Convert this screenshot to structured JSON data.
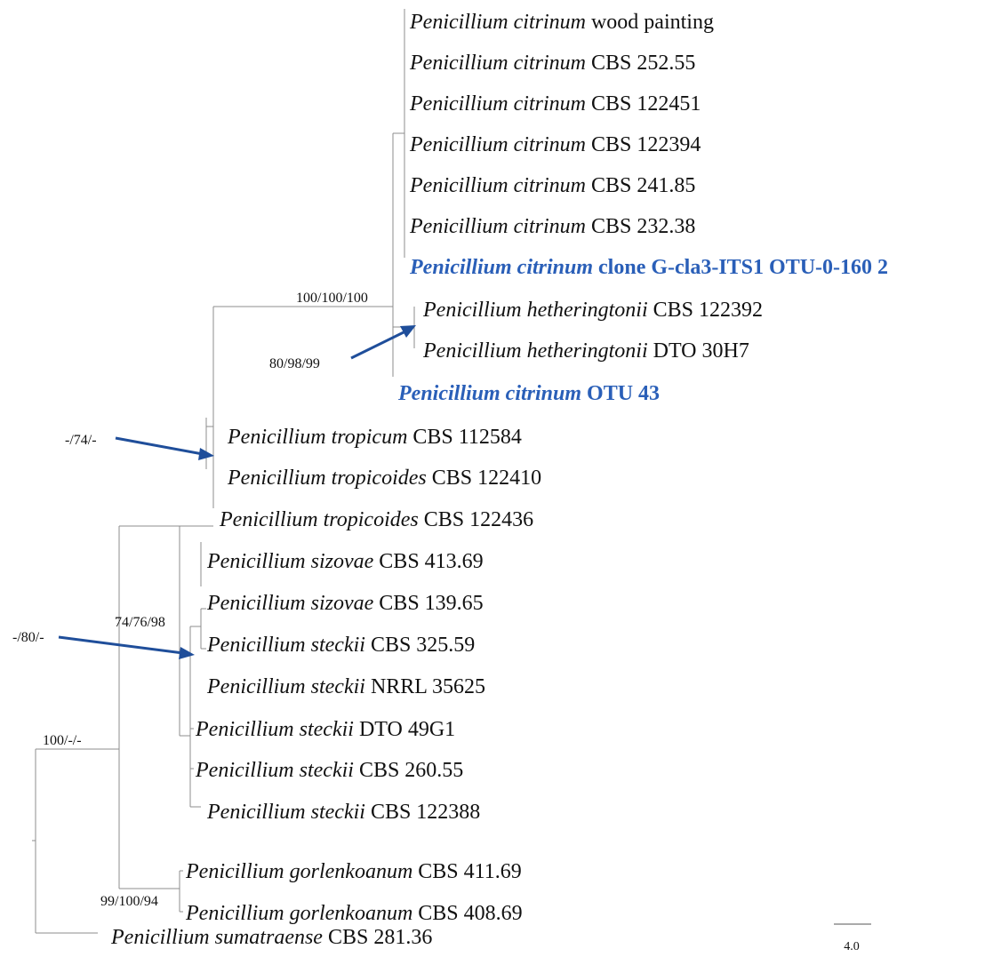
{
  "taxa": [
    {
      "species": "Penicillium citrinum",
      "strain": "wood painting",
      "highlight": false
    },
    {
      "species": "Penicillium citrinum",
      "strain": "CBS 252.55",
      "highlight": false
    },
    {
      "species": "Penicillium citrinum",
      "strain": "CBS 122451",
      "highlight": false
    },
    {
      "species": "Penicillium citrinum",
      "strain": "CBS 122394",
      "highlight": false
    },
    {
      "species": "Penicillium citrinum",
      "strain": "CBS 241.85",
      "highlight": false
    },
    {
      "species": "Penicillium citrinum",
      "strain": "CBS 232.38",
      "highlight": false
    },
    {
      "species": "Penicillium citrinum",
      "strain": "clone G-cla3-ITS1 OTU-0-160 2",
      "highlight": true
    },
    {
      "species": "Penicillium hetheringtonii",
      "strain": "CBS 122392",
      "highlight": false
    },
    {
      "species": "Penicillium hetheringtonii",
      "strain": "DTO 30H7",
      "highlight": false
    },
    {
      "species": "Penicillium citrinum",
      "strain": "OTU 43",
      "highlight": true
    },
    {
      "species": "Penicillium tropicum",
      "strain": "CBS 112584",
      "highlight": false
    },
    {
      "species": "Penicillium tropicoides",
      "strain": "CBS 122410",
      "highlight": false
    },
    {
      "species": "Penicillium tropicoides",
      "strain": "CBS 122436",
      "highlight": false
    },
    {
      "species": "Penicillium sizovae",
      "strain": "CBS 413.69",
      "highlight": false
    },
    {
      "species": "Penicillium sizovae",
      "strain": "CBS 139.65",
      "highlight": false
    },
    {
      "species": "Penicillium steckii",
      "strain": "CBS 325.59",
      "highlight": false
    },
    {
      "species": "Penicillium steckii",
      "strain": "NRRL 35625",
      "highlight": false
    },
    {
      "species": "Penicillium steckii",
      "strain": "DTO 49G1",
      "highlight": false
    },
    {
      "species": "Penicillium steckii",
      "strain": "CBS 260.55",
      "highlight": false
    },
    {
      "species": "Penicillium steckii",
      "strain": "CBS 122388",
      "highlight": false
    },
    {
      "species": "Penicillium gorlenkoanum",
      "strain": "CBS 411.69",
      "highlight": false
    },
    {
      "species": "Penicillium gorlenkoanum",
      "strain": "CBS 408.69",
      "highlight": false
    },
    {
      "species": "Penicillium sumatraense",
      "strain": "CBS 281.36",
      "highlight": false
    }
  ],
  "support_values": {
    "citrinum_clade": "100/100/100",
    "hetheringtonii_clade": "80/98/99",
    "tropicum_clade": "-/74/-",
    "steckii_clade": "-/80/-",
    "inner_clade": "74/76/98",
    "ingroup": "100/-/-",
    "gorlenkoanum_clade": "99/100/94"
  },
  "scale_bar": {
    "label": "4.0"
  },
  "colors": {
    "highlight": "#2a5fb8",
    "arrow": "#1f4e9a",
    "branch": "#8c8c8c"
  }
}
